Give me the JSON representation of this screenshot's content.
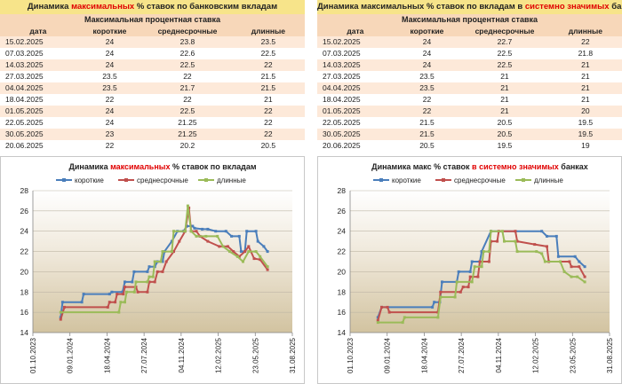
{
  "tables": [
    {
      "title_pre": "Динамика ",
      "title_hl": "максимальных",
      "title_post": " % ставок по банковским вкладам",
      "subheader": "Максимальная процентная ставка",
      "columns": [
        "дата",
        "короткие",
        "среднесрочные",
        "длинные"
      ],
      "rows": [
        [
          "15.02.2025",
          "24",
          "23.8",
          "23.5"
        ],
        [
          "07.03.2025",
          "24",
          "22.6",
          "22.5"
        ],
        [
          "14.03.2025",
          "24",
          "22.5",
          "22"
        ],
        [
          "27.03.2025",
          "23.5",
          "22",
          "21.5"
        ],
        [
          "04.04.2025",
          "23.5",
          "21.7",
          "21.5"
        ],
        [
          "18.04.2025",
          "22",
          "22",
          "21"
        ],
        [
          "01.05.2025",
          "24",
          "22.5",
          "22"
        ],
        [
          "22.05.2025",
          "24",
          "21.25",
          "22"
        ],
        [
          "30.05.2025",
          "23",
          "21.25",
          "22"
        ],
        [
          "20.06.2025",
          "22",
          "20.2",
          "20.5"
        ]
      ]
    },
    {
      "title_pre": "Динамика максимальных % ставок по вкладам в ",
      "title_hl": "системно значимых",
      "title_post": " банках",
      "subheader": "Максимальная процентная ставка",
      "columns": [
        "дата",
        "короткие",
        "среднесрочные",
        "длинные"
      ],
      "rows": [
        [
          "15.02.2025",
          "24",
          "22.7",
          "22"
        ],
        [
          "07.03.2025",
          "24",
          "22.5",
          "21.8"
        ],
        [
          "14.03.2025",
          "24",
          "22.5",
          "21"
        ],
        [
          "27.03.2025",
          "23.5",
          "21",
          "21"
        ],
        [
          "04.04.2025",
          "23.5",
          "21",
          "21"
        ],
        [
          "18.04.2025",
          "22",
          "21",
          "21"
        ],
        [
          "01.05.2025",
          "22",
          "21",
          "20"
        ],
        [
          "22.05.2025",
          "21.5",
          "20.5",
          "19.5"
        ],
        [
          "30.05.2025",
          "21.5",
          "20.5",
          "19.5"
        ],
        [
          "20.06.2025",
          "20.5",
          "19.5",
          "19"
        ]
      ]
    }
  ],
  "chart_data": [
    {
      "type": "line",
      "title_pre": "Динамика ",
      "title_hl": "максимальных",
      "title_post": " % ставок по вкладам",
      "xlabel": "",
      "ylabel": "",
      "ylim": [
        14,
        28
      ],
      "yticks": [
        14,
        16,
        18,
        20,
        22,
        24,
        26,
        28
      ],
      "xlim": [
        "2023-10-01",
        "2025-08-31"
      ],
      "xticks": [
        "01.10.2023",
        "09.01.2024",
        "18.04.2024",
        "27.07.2024",
        "04.11.2024",
        "12.02.2025",
        "23.05.2025",
        "31.08.2025"
      ],
      "grid": true,
      "legend": "top",
      "series": [
        {
          "name": "короткие",
          "color": "#4a7ebb",
          "points": [
            [
              "2023-12-15",
              15.5
            ],
            [
              "2023-12-20",
              17
            ],
            [
              "2024-02-10",
              17
            ],
            [
              "2024-02-15",
              17.8
            ],
            [
              "2024-04-25",
              17.8
            ],
            [
              "2024-05-01",
              18
            ],
            [
              "2024-05-30",
              18
            ],
            [
              "2024-06-05",
              19
            ],
            [
              "2024-06-25",
              19
            ],
            [
              "2024-06-30",
              20
            ],
            [
              "2024-08-05",
              20
            ],
            [
              "2024-08-10",
              20.5
            ],
            [
              "2024-08-25",
              20.5
            ],
            [
              "2024-09-01",
              21
            ],
            [
              "2024-09-15",
              21
            ],
            [
              "2024-09-20",
              22
            ],
            [
              "2024-10-10",
              23
            ],
            [
              "2024-10-25",
              24
            ],
            [
              "2024-11-10",
              24
            ],
            [
              "2024-11-20",
              24.5
            ],
            [
              "2024-12-05",
              24.5
            ],
            [
              "2024-12-10",
              24.3
            ],
            [
              "2024-12-31",
              24.2
            ],
            [
              "2025-01-15",
              24.2
            ],
            [
              "2025-02-05",
              24
            ],
            [
              "2025-03-05",
              24
            ],
            [
              "2025-03-20",
              23.5
            ],
            [
              "2025-04-10",
              23.5
            ],
            [
              "2025-04-15",
              22
            ],
            [
              "2025-04-25",
              22
            ],
            [
              "2025-04-30",
              24
            ],
            [
              "2025-05-25",
              24
            ],
            [
              "2025-05-30",
              23
            ],
            [
              "2025-06-15",
              22.5
            ],
            [
              "2025-06-25",
              22
            ]
          ]
        },
        {
          "name": "среднесрочные",
          "color": "#c0504d",
          "points": [
            [
              "2023-12-15",
              15.3
            ],
            [
              "2023-12-25",
              16.5
            ],
            [
              "2024-04-20",
              16.5
            ],
            [
              "2024-04-25",
              17
            ],
            [
              "2024-05-10",
              17
            ],
            [
              "2024-05-15",
              17.8
            ],
            [
              "2024-06-01",
              17.8
            ],
            [
              "2024-06-05",
              18.5
            ],
            [
              "2024-07-05",
              18.5
            ],
            [
              "2024-07-10",
              18
            ],
            [
              "2024-08-05",
              18
            ],
            [
              "2024-08-10",
              19
            ],
            [
              "2024-08-25",
              19
            ],
            [
              "2024-09-01",
              20
            ],
            [
              "2024-09-15",
              20
            ],
            [
              "2024-09-25",
              21
            ],
            [
              "2024-10-15",
              22
            ],
            [
              "2024-10-30",
              23
            ],
            [
              "2024-11-15",
              24
            ],
            [
              "2024-11-25",
              26.3
            ],
            [
              "2024-12-01",
              24
            ],
            [
              "2024-12-15",
              24
            ],
            [
              "2024-12-25",
              23.5
            ],
            [
              "2025-01-15",
              23
            ],
            [
              "2025-02-15",
              22.5
            ],
            [
              "2025-03-10",
              22.5
            ],
            [
              "2025-03-25",
              22
            ],
            [
              "2025-04-10",
              21.5
            ],
            [
              "2025-04-25",
              22
            ],
            [
              "2025-05-05",
              22.5
            ],
            [
              "2025-05-20",
              21.3
            ],
            [
              "2025-06-05",
              21.2
            ],
            [
              "2025-06-25",
              20.2
            ]
          ]
        },
        {
          "name": "длинные",
          "color": "#9bbb59",
          "points": [
            [
              "2023-12-15",
              16
            ],
            [
              "2024-05-20",
              16
            ],
            [
              "2024-05-25",
              17
            ],
            [
              "2024-06-05",
              17
            ],
            [
              "2024-06-10",
              18
            ],
            [
              "2024-07-01",
              18
            ],
            [
              "2024-07-05",
              19
            ],
            [
              "2024-08-05",
              19
            ],
            [
              "2024-08-10",
              19.5
            ],
            [
              "2024-08-20",
              19.5
            ],
            [
              "2024-08-25",
              21
            ],
            [
              "2024-09-10",
              21
            ],
            [
              "2024-09-15",
              22
            ],
            [
              "2024-10-10",
              22
            ],
            [
              "2024-10-15",
              24
            ],
            [
              "2024-11-15",
              24
            ],
            [
              "2024-11-22",
              26.5
            ],
            [
              "2024-12-01",
              24
            ],
            [
              "2024-12-15",
              23.5
            ],
            [
              "2025-01-10",
              23.5
            ],
            [
              "2025-02-10",
              23.5
            ],
            [
              "2025-02-25",
              22.5
            ],
            [
              "2025-03-15",
              22
            ],
            [
              "2025-04-05",
              21.5
            ],
            [
              "2025-04-20",
              21
            ],
            [
              "2025-05-05",
              22
            ],
            [
              "2025-05-25",
              22
            ],
            [
              "2025-06-05",
              21.5
            ],
            [
              "2025-06-25",
              20.5
            ]
          ]
        }
      ]
    },
    {
      "type": "line",
      "title_pre": "Динамика макс % ставок ",
      "title_hl": "в системно значимых",
      "title_post": " банках",
      "xlabel": "",
      "ylabel": "",
      "ylim": [
        14,
        28
      ],
      "yticks": [
        14,
        16,
        18,
        20,
        22,
        24,
        26,
        28
      ],
      "xlim": [
        "2023-10-01",
        "2025-08-31"
      ],
      "xticks": [
        "01.10.2023",
        "09.01.2024",
        "18.04.2024",
        "27.07.2024",
        "04.11.2024",
        "12.02.2025",
        "23.05.2025",
        "31.08.2025"
      ],
      "grid": true,
      "legend": "top",
      "series": [
        {
          "name": "короткие",
          "color": "#4a7ebb",
          "points": [
            [
              "2023-12-15",
              15.5
            ],
            [
              "2023-12-25",
              16.5
            ],
            [
              "2024-05-10",
              16.5
            ],
            [
              "2024-05-15",
              17
            ],
            [
              "2024-05-30",
              17
            ],
            [
              "2024-06-05",
              19
            ],
            [
              "2024-07-15",
              19
            ],
            [
              "2024-07-20",
              20
            ],
            [
              "2024-08-20",
              20
            ],
            [
              "2024-08-25",
              21
            ],
            [
              "2024-09-15",
              21
            ],
            [
              "2024-09-20",
              22
            ],
            [
              "2024-10-15",
              24
            ],
            [
              "2025-03-01",
              24
            ],
            [
              "2025-03-15",
              23.5
            ],
            [
              "2025-04-10",
              23.5
            ],
            [
              "2025-04-15",
              21.5
            ],
            [
              "2025-05-30",
              21.5
            ],
            [
              "2025-06-10",
              21
            ],
            [
              "2025-06-25",
              20.5
            ]
          ]
        },
        {
          "name": "среднесрочные",
          "color": "#c0504d",
          "points": [
            [
              "2023-12-15",
              15.2
            ],
            [
              "2023-12-25",
              16.5
            ],
            [
              "2024-01-10",
              16.5
            ],
            [
              "2024-01-15",
              16
            ],
            [
              "2024-05-25",
              16
            ],
            [
              "2024-06-01",
              18
            ],
            [
              "2024-07-25",
              18
            ],
            [
              "2024-08-01",
              18.5
            ],
            [
              "2024-08-15",
              18.5
            ],
            [
              "2024-08-20",
              19.5
            ],
            [
              "2024-09-10",
              19.5
            ],
            [
              "2024-09-15",
              21
            ],
            [
              "2024-10-10",
              21
            ],
            [
              "2024-10-15",
              23
            ],
            [
              "2024-11-01",
              23
            ],
            [
              "2024-11-05",
              24
            ],
            [
              "2024-12-20",
              24
            ],
            [
              "2024-12-25",
              23
            ],
            [
              "2025-02-10",
              22.7
            ],
            [
              "2025-03-15",
              22.5
            ],
            [
              "2025-03-20",
              21
            ],
            [
              "2025-05-15",
              21
            ],
            [
              "2025-05-20",
              20.5
            ],
            [
              "2025-06-10",
              20.5
            ],
            [
              "2025-06-25",
              19.5
            ]
          ]
        },
        {
          "name": "длинные",
          "color": "#9bbb59",
          "points": [
            [
              "2023-12-15",
              15
            ],
            [
              "2024-02-20",
              15
            ],
            [
              "2024-02-25",
              15.5
            ],
            [
              "2024-05-25",
              15.5
            ],
            [
              "2024-06-01",
              17.5
            ],
            [
              "2024-07-10",
              17.5
            ],
            [
              "2024-07-15",
              19
            ],
            [
              "2024-08-25",
              19
            ],
            [
              "2024-09-01",
              20.5
            ],
            [
              "2024-09-20",
              20.5
            ],
            [
              "2024-09-25",
              22
            ],
            [
              "2024-10-10",
              22
            ],
            [
              "2024-10-15",
              24
            ],
            [
              "2024-11-15",
              24
            ],
            [
              "2024-11-20",
              23
            ],
            [
              "2024-12-20",
              23
            ],
            [
              "2024-12-25",
              22
            ],
            [
              "2025-02-15",
              22
            ],
            [
              "2025-03-01",
              21.8
            ],
            [
              "2025-03-10",
              21
            ],
            [
              "2025-04-20",
              21
            ],
            [
              "2025-05-01",
              20
            ],
            [
              "2025-05-20",
              19.5
            ],
            [
              "2025-06-05",
              19.5
            ],
            [
              "2025-06-25",
              19
            ]
          ]
        }
      ]
    }
  ]
}
